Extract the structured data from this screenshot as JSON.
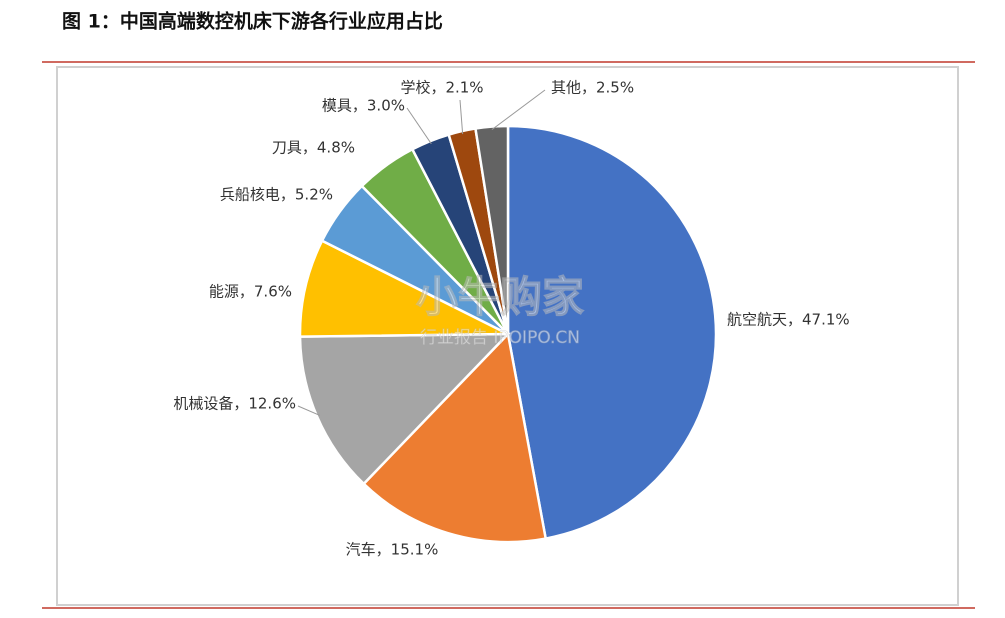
{
  "chart_data": {
    "type": "pie",
    "title": "图 1：中国高端数控机床下游各行业应用占比",
    "values": [
      47.1,
      15.1,
      12.6,
      7.6,
      5.2,
      4.8,
      3.0,
      2.1,
      2.5
    ],
    "value_labels": [
      "航空航天，47.1%",
      "汽车，15.1%",
      "机械设备，12.6%",
      "能源，7.6%",
      "兵船核电，5.2%",
      "刀具，4.8%",
      "模具，3.0%",
      "学校，2.1%",
      "其他，2.5%"
    ],
    "colors": [
      "#4472c4",
      "#ed7d31",
      "#a5a5a5",
      "#ffc000",
      "#5b9bd5",
      "#70ad47",
      "#264478",
      "#9e480e",
      "#636363"
    ],
    "watermark": {
      "text": "小牛购家",
      "subtext": "行业报告 IPOIPO.CN"
    }
  }
}
